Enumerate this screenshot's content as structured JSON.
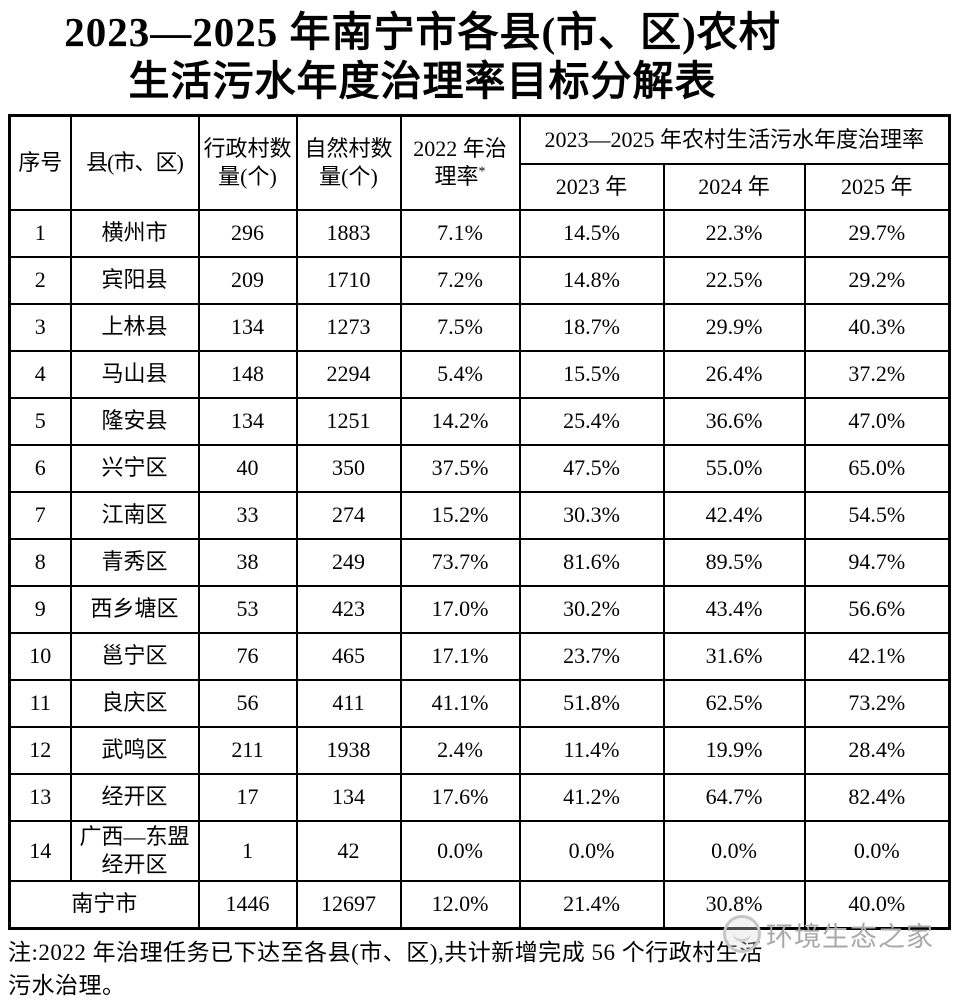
{
  "title": {
    "line1": "2023—2025 年南宁市各县(市、区)农村",
    "line2": "生活污水年度治理率目标分解表"
  },
  "table": {
    "headers": {
      "seq": "序号",
      "county": "县(市、区)",
      "admin_villages": "行政村数量(个)",
      "natural_villages": "自然村数量(个)",
      "rate2022": "2022 年治理率",
      "rate2022_marker": "*",
      "span": "2023—2025 年农村生活污水年度治理率",
      "y2023": "2023 年",
      "y2024": "2024 年",
      "y2025": "2025 年"
    },
    "rows": [
      [
        "1",
        "横州市",
        "296",
        "1883",
        "7.1%",
        "14.5%",
        "22.3%",
        "29.7%"
      ],
      [
        "2",
        "宾阳县",
        "209",
        "1710",
        "7.2%",
        "14.8%",
        "22.5%",
        "29.2%"
      ],
      [
        "3",
        "上林县",
        "134",
        "1273",
        "7.5%",
        "18.7%",
        "29.9%",
        "40.3%"
      ],
      [
        "4",
        "马山县",
        "148",
        "2294",
        "5.4%",
        "15.5%",
        "26.4%",
        "37.2%"
      ],
      [
        "5",
        "隆安县",
        "134",
        "1251",
        "14.2%",
        "25.4%",
        "36.6%",
        "47.0%"
      ],
      [
        "6",
        "兴宁区",
        "40",
        "350",
        "37.5%",
        "47.5%",
        "55.0%",
        "65.0%"
      ],
      [
        "7",
        "江南区",
        "33",
        "274",
        "15.2%",
        "30.3%",
        "42.4%",
        "54.5%"
      ],
      [
        "8",
        "青秀区",
        "38",
        "249",
        "73.7%",
        "81.6%",
        "89.5%",
        "94.7%"
      ],
      [
        "9",
        "西乡塘区",
        "53",
        "423",
        "17.0%",
        "30.2%",
        "43.4%",
        "56.6%"
      ],
      [
        "10",
        "邕宁区",
        "76",
        "465",
        "17.1%",
        "23.7%",
        "31.6%",
        "42.1%"
      ],
      [
        "11",
        "良庆区",
        "56",
        "411",
        "41.1%",
        "51.8%",
        "62.5%",
        "73.2%"
      ],
      [
        "12",
        "武鸣区",
        "211",
        "1938",
        "2.4%",
        "11.4%",
        "19.9%",
        "28.4%"
      ],
      [
        "13",
        "经开区",
        "17",
        "134",
        "17.6%",
        "41.2%",
        "64.7%",
        "82.4%"
      ],
      [
        "14",
        "广西—东盟经开区",
        "1",
        "42",
        "0.0%",
        "0.0%",
        "0.0%",
        "0.0%"
      ]
    ],
    "total": {
      "label": "南宁市",
      "values": [
        "1446",
        "12697",
        "12.0%",
        "21.4%",
        "30.8%",
        "40.0%"
      ]
    }
  },
  "note": {
    "line1": "注:2022 年治理任务已下达至各县(市、区),共计新增完成 56 个行政村生活",
    "line2": "污水治理。"
  },
  "watermark": {
    "text": "环境生态之家"
  },
  "colors": {
    "text": "#000000",
    "border": "#000000",
    "background": "#ffffff",
    "watermark": "#a9a9a9"
  }
}
